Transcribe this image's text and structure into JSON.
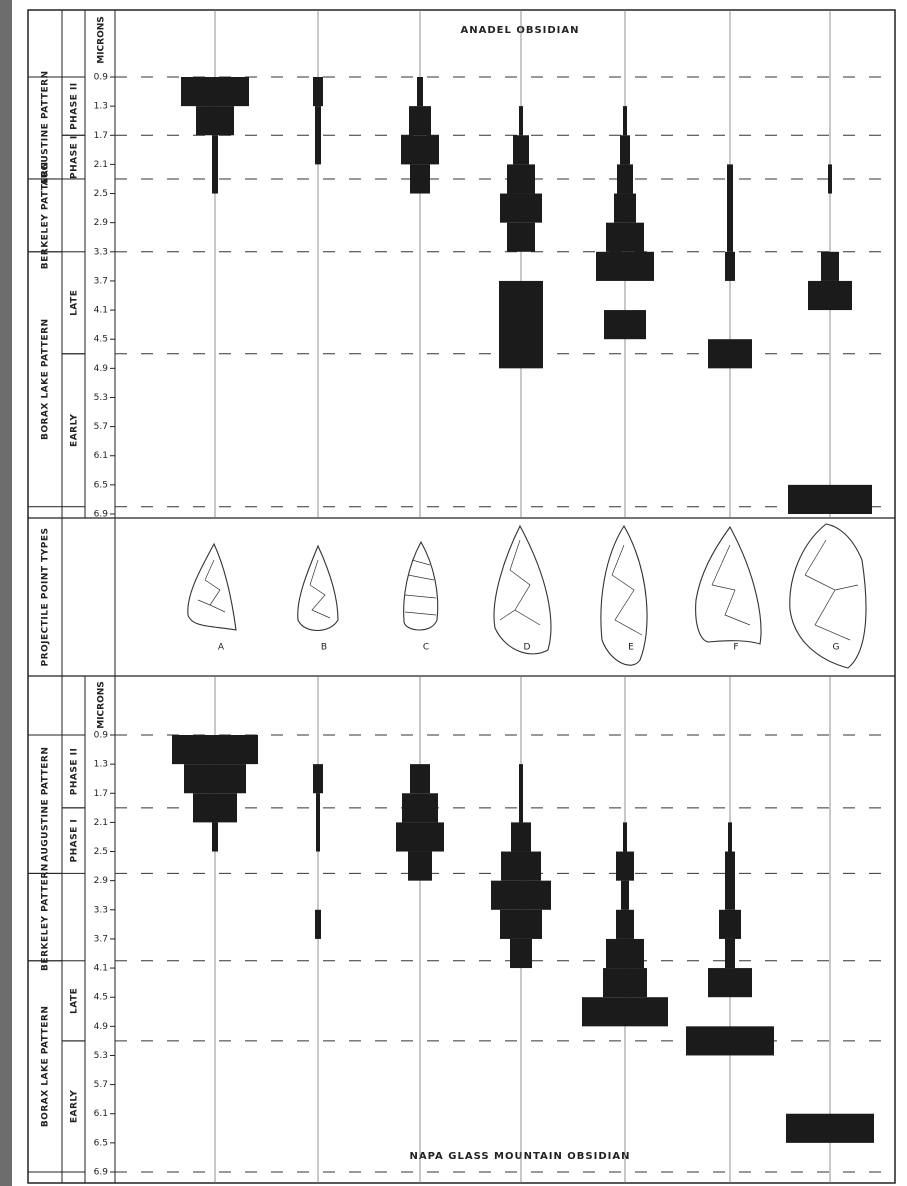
{
  "chart_data": [
    {
      "type": "range-bar",
      "title": "ANADEL OBSIDIAN",
      "axis_label": "MICRONS",
      "ylim": [
        0.9,
        6.9
      ],
      "yticks": [
        0.9,
        1.3,
        1.7,
        2.1,
        2.5,
        2.9,
        3.3,
        3.7,
        4.1,
        4.5,
        4.9,
        5.3,
        5.7,
        6.1,
        6.5,
        6.9
      ],
      "boundaries": [
        0.9,
        1.7,
        2.3,
        3.3,
        4.7,
        6.8
      ],
      "periods": [
        {
          "label": "AUGUSTINE PATTERN",
          "from": 0.9,
          "to": 2.3,
          "phases": [
            {
              "label": "PHASE II",
              "from": 0.9,
              "to": 1.7
            },
            {
              "label": "PHASE I",
              "from": 1.7,
              "to": 2.3
            }
          ]
        },
        {
          "label": "BERKELEY PATTERN",
          "from": 2.3,
          "to": 3.3,
          "phases": []
        },
        {
          "label": "BORAX LAKE PATTERN",
          "from": 3.3,
          "to": 6.8,
          "phases": [
            {
              "label": "LATE",
              "from": 3.3,
              "to": 4.7
            },
            {
              "label": "EARLY",
              "from": 4.7,
              "to": 6.8
            }
          ]
        }
      ],
      "columns": [
        {
          "segments": [
            {
              "from": 0.9,
              "to": 1.3,
              "width": 68
            },
            {
              "from": 1.3,
              "to": 1.7,
              "width": 38
            },
            {
              "from": 1.7,
              "to": 2.5,
              "width": 6
            }
          ]
        },
        {
          "segments": [
            {
              "from": 0.9,
              "to": 1.3,
              "width": 10
            },
            {
              "from": 1.3,
              "to": 2.1,
              "width": 6
            }
          ]
        },
        {
          "segments": [
            {
              "from": 0.9,
              "to": 1.3,
              "width": 6
            },
            {
              "from": 1.3,
              "to": 1.7,
              "width": 22
            },
            {
              "from": 1.7,
              "to": 2.1,
              "width": 38
            },
            {
              "from": 2.1,
              "to": 2.5,
              "width": 20
            }
          ]
        },
        {
          "segments": [
            {
              "from": 1.3,
              "to": 1.7,
              "width": 4
            },
            {
              "from": 1.7,
              "to": 2.1,
              "width": 16
            },
            {
              "from": 2.1,
              "to": 2.5,
              "width": 28
            },
            {
              "from": 2.5,
              "to": 2.9,
              "width": 42
            },
            {
              "from": 2.9,
              "to": 3.3,
              "width": 28
            },
            {
              "from": 3.7,
              "to": 4.9,
              "width": 44
            }
          ]
        },
        {
          "segments": [
            {
              "from": 1.3,
              "to": 1.7,
              "width": 4
            },
            {
              "from": 1.7,
              "to": 2.1,
              "width": 10
            },
            {
              "from": 2.1,
              "to": 2.5,
              "width": 16
            },
            {
              "from": 2.5,
              "to": 2.9,
              "width": 22
            },
            {
              "from": 2.9,
              "to": 3.3,
              "width": 38
            },
            {
              "from": 3.3,
              "to": 3.7,
              "width": 58
            },
            {
              "from": 4.1,
              "to": 4.5,
              "width": 42
            }
          ]
        },
        {
          "segments": [
            {
              "from": 2.1,
              "to": 3.3,
              "width": 6
            },
            {
              "from": 3.3,
              "to": 3.7,
              "width": 10
            },
            {
              "from": 4.5,
              "to": 4.9,
              "width": 44
            }
          ]
        },
        {
          "segments": [
            {
              "from": 2.1,
              "to": 2.5,
              "width": 4
            },
            {
              "from": 3.3,
              "to": 3.7,
              "width": 18
            },
            {
              "from": 3.7,
              "to": 4.1,
              "width": 44
            },
            {
              "from": 6.5,
              "to": 6.9,
              "width": 84
            }
          ]
        }
      ]
    },
    {
      "type": "range-bar",
      "title": "NAPA GLASS MOUNTAIN OBSIDIAN",
      "axis_label": "MICRONS",
      "ylim": [
        0.9,
        6.9
      ],
      "yticks": [
        0.9,
        1.3,
        1.7,
        2.1,
        2.5,
        2.9,
        3.3,
        3.7,
        4.1,
        4.5,
        4.9,
        5.3,
        5.7,
        6.1,
        6.5,
        6.9
      ],
      "boundaries": [
        0.9,
        1.9,
        2.8,
        4,
        5.1,
        6.9
      ],
      "periods": [
        {
          "label": "AUGUSTINE PATTERN",
          "from": 0.9,
          "to": 2.8,
          "phases": [
            {
              "label": "PHASE II",
              "from": 0.9,
              "to": 1.9
            },
            {
              "label": "PHASE I",
              "from": 1.9,
              "to": 2.8
            }
          ]
        },
        {
          "label": "BERKELEY PATTERN",
          "from": 2.8,
          "to": 4,
          "phases": []
        },
        {
          "label": "BORAX LAKE PATTERN",
          "from": 4,
          "to": 6.9,
          "phases": [
            {
              "label": "LATE",
              "from": 4,
              "to": 5.1
            },
            {
              "label": "EARLY",
              "from": 5.1,
              "to": 6.9
            }
          ]
        }
      ],
      "columns": [
        {
          "segments": [
            {
              "from": 0.9,
              "to": 1.3,
              "width": 86
            },
            {
              "from": 1.3,
              "to": 1.7,
              "width": 62
            },
            {
              "from": 1.7,
              "to": 2.1,
              "width": 44
            },
            {
              "from": 2.1,
              "to": 2.5,
              "width": 6
            }
          ]
        },
        {
          "segments": [
            {
              "from": 1.3,
              "to": 1.7,
              "width": 10
            },
            {
              "from": 1.7,
              "to": 2.5,
              "width": 4
            },
            {
              "from": 3.3,
              "to": 3.7,
              "width": 6
            }
          ]
        },
        {
          "segments": [
            {
              "from": 1.3,
              "to": 1.7,
              "width": 20
            },
            {
              "from": 1.7,
              "to": 2.1,
              "width": 36
            },
            {
              "from": 2.1,
              "to": 2.5,
              "width": 48
            },
            {
              "from": 2.5,
              "to": 2.9,
              "width": 24
            }
          ]
        },
        {
          "segments": [
            {
              "from": 1.3,
              "to": 2.1,
              "width": 4
            },
            {
              "from": 2.1,
              "to": 2.5,
              "width": 20
            },
            {
              "from": 2.5,
              "to": 2.9,
              "width": 40
            },
            {
              "from": 2.9,
              "to": 3.3,
              "width": 60
            },
            {
              "from": 3.3,
              "to": 3.7,
              "width": 42
            },
            {
              "from": 3.7,
              "to": 4.1,
              "width": 22
            }
          ]
        },
        {
          "segments": [
            {
              "from": 2.1,
              "to": 2.5,
              "width": 4
            },
            {
              "from": 2.5,
              "to": 2.9,
              "width": 18
            },
            {
              "from": 2.9,
              "to": 3.3,
              "width": 8
            },
            {
              "from": 3.3,
              "to": 3.7,
              "width": 18
            },
            {
              "from": 3.7,
              "to": 4.1,
              "width": 38
            },
            {
              "from": 4.1,
              "to": 4.5,
              "width": 44
            },
            {
              "from": 4.5,
              "to": 4.9,
              "width": 86
            }
          ]
        },
        {
          "segments": [
            {
              "from": 2.1,
              "to": 2.5,
              "width": 4
            },
            {
              "from": 2.5,
              "to": 3.3,
              "width": 10
            },
            {
              "from": 3.3,
              "to": 3.7,
              "width": 22
            },
            {
              "from": 3.7,
              "to": 4.1,
              "width": 10
            },
            {
              "from": 4.1,
              "to": 4.5,
              "width": 44
            },
            {
              "from": 4.9,
              "to": 5.3,
              "width": 88
            }
          ]
        },
        {
          "segments": [
            {
              "from": 6.1,
              "to": 6.5,
              "width": 88
            }
          ]
        }
      ]
    }
  ],
  "point_types": {
    "label": "PROJECTILE POINT TYPES",
    "letters": [
      "A",
      "B",
      "C",
      "D",
      "E",
      "F",
      "G"
    ]
  }
}
